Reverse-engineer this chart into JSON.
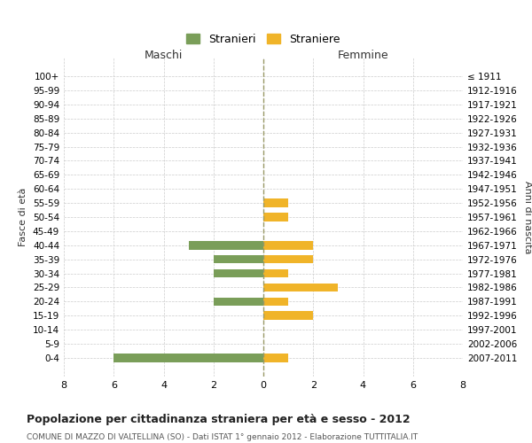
{
  "age_groups": [
    "0-4",
    "5-9",
    "10-14",
    "15-19",
    "20-24",
    "25-29",
    "30-34",
    "35-39",
    "40-44",
    "45-49",
    "50-54",
    "55-59",
    "60-64",
    "65-69",
    "70-74",
    "75-79",
    "80-84",
    "85-89",
    "90-94",
    "95-99",
    "100+"
  ],
  "birth_years": [
    "2007-2011",
    "2002-2006",
    "1997-2001",
    "1992-1996",
    "1987-1991",
    "1982-1986",
    "1977-1981",
    "1972-1976",
    "1967-1971",
    "1962-1966",
    "1957-1961",
    "1952-1956",
    "1947-1951",
    "1942-1946",
    "1937-1941",
    "1932-1936",
    "1927-1931",
    "1922-1926",
    "1917-1921",
    "1912-1916",
    "≤ 1911"
  ],
  "stranieri": [
    6,
    0,
    0,
    0,
    2,
    0,
    2,
    2,
    3,
    0,
    0,
    0,
    0,
    0,
    0,
    0,
    0,
    0,
    0,
    0,
    0
  ],
  "straniere": [
    1,
    0,
    0,
    2,
    1,
    3,
    1,
    2,
    2,
    0,
    1,
    1,
    0,
    0,
    0,
    0,
    0,
    0,
    0,
    0,
    0
  ],
  "color_stranieri": "#7a9e59",
  "color_straniere": "#f0b429",
  "title": "Popolazione per cittadinanza straniera per età e sesso - 2012",
  "subtitle": "COMUNE DI MAZZO DI VALTELLINA (SO) - Dati ISTAT 1° gennaio 2012 - Elaborazione TUTTITALIA.IT",
  "xlabel_left": "Maschi",
  "xlabel_right": "Femmine",
  "ylabel_left": "Fasce di età",
  "ylabel_right": "Anni di nascita",
  "legend_stranieri": "Stranieri",
  "legend_straniere": "Straniere",
  "xlim": 8,
  "background_color": "#ffffff",
  "grid_color": "#cccccc"
}
